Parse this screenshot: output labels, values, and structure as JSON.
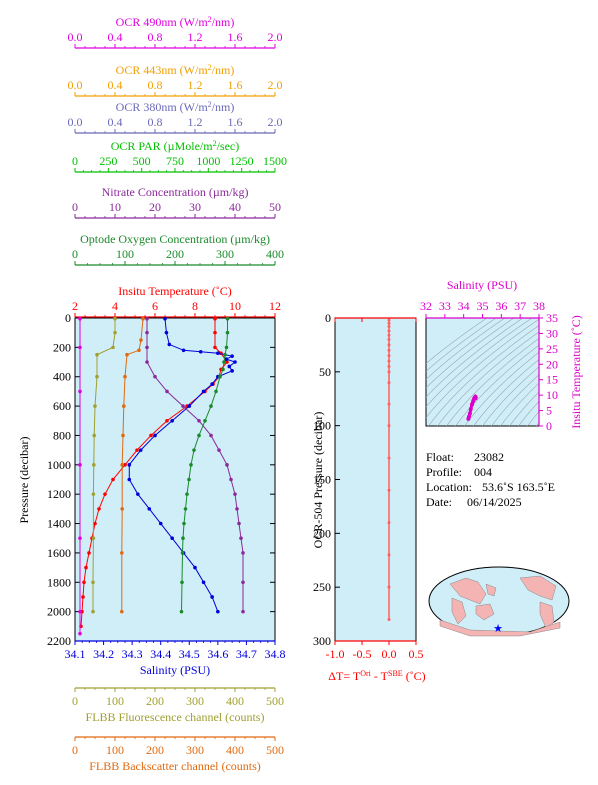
{
  "top_axes": [
    {
      "key": "ocr490",
      "label": "OCR 490nm (W/m²/nm)",
      "color": "#e000e0",
      "ticks": [
        "0.0",
        "0.4",
        "0.8",
        "1.2",
        "1.6",
        "2.0"
      ],
      "tick_values": [
        0,
        0.4,
        0.8,
        1.2,
        1.6,
        2.0
      ],
      "range": [
        0,
        2
      ]
    },
    {
      "key": "ocr443",
      "label": "OCR 443nm (W/m²/nm)",
      "color": "#f0a000",
      "ticks": [
        "0.0",
        "0.4",
        "0.8",
        "1.2",
        "1.6",
        "2.0"
      ],
      "tick_values": [
        0,
        0.4,
        0.8,
        1.2,
        1.6,
        2.0
      ],
      "range": [
        0,
        2
      ]
    },
    {
      "key": "ocr380",
      "label": "OCR 380nm (W/m²/nm)",
      "color": "#6a6ab8",
      "ticks": [
        "0.0",
        "0.4",
        "0.8",
        "1.2",
        "1.6",
        "2.0"
      ],
      "tick_values": [
        0,
        0.4,
        0.8,
        1.2,
        1.6,
        2.0
      ],
      "range": [
        0,
        2
      ]
    },
    {
      "key": "par",
      "label": "OCR PAR (µMole/m²/sec)",
      "color": "#00c000",
      "ticks": [
        "0",
        "250",
        "500",
        "750",
        "1000",
        "1250",
        "1500"
      ],
      "tick_values": [
        0,
        250,
        500,
        750,
        1000,
        1250,
        1500
      ],
      "range": [
        0,
        1500
      ]
    },
    {
      "key": "nitrate",
      "label": "Nitrate Concentration (µm/kg)",
      "color": "#8b2a9a",
      "ticks": [
        "0",
        "10",
        "20",
        "30",
        "40",
        "50"
      ],
      "tick_values": [
        0,
        10,
        20,
        30,
        40,
        50
      ],
      "range": [
        0,
        50
      ]
    },
    {
      "key": "oxygen",
      "label": "Optode Oxygen Concentration (µm/kg)",
      "color": "#1a8a2a",
      "ticks": [
        "0",
        "100",
        "200",
        "300",
        "400"
      ],
      "tick_values": [
        0,
        100,
        200,
        300,
        400
      ],
      "range": [
        0,
        400
      ]
    },
    {
      "key": "temp",
      "label": "Insitu Temperature (˚C)",
      "color": "#ff0000",
      "ticks": [
        "2",
        "4",
        "6",
        "8",
        "10",
        "12"
      ],
      "tick_values": [
        2,
        4,
        6,
        8,
        10,
        12
      ],
      "range": [
        2,
        12
      ]
    }
  ],
  "bottom_axes": [
    {
      "key": "salinity",
      "label": "Salinity (PSU)",
      "color": "#0000dd",
      "ticks": [
        "34.1",
        "34.2",
        "34.3",
        "34.4",
        "34.5",
        "34.6",
        "34.7",
        "34.8"
      ],
      "tick_values": [
        34.1,
        34.2,
        34.3,
        34.4,
        34.5,
        34.6,
        34.7,
        34.8
      ],
      "range": [
        34.1,
        34.8
      ]
    },
    {
      "key": "fluor",
      "label": "FLBB Fluorescence channel (counts)",
      "color": "#a0a030",
      "ticks": [
        "0",
        "100",
        "200",
        "300",
        "400",
        "500"
      ],
      "tick_values": [
        0,
        100,
        200,
        300,
        400,
        500
      ],
      "range": [
        0,
        500
      ]
    },
    {
      "key": "backscatter",
      "label": "FLBB Backscatter channel (counts)",
      "color": "#e06a10",
      "ticks": [
        "0",
        "100",
        "200",
        "300",
        "400",
        "500"
      ],
      "tick_values": [
        0,
        100,
        200,
        300,
        400,
        500
      ],
      "range": [
        0,
        500
      ]
    }
  ],
  "main_y": {
    "label": "Pressure (decibar)",
    "ticks": [
      "0",
      "200",
      "400",
      "600",
      "800",
      "1000",
      "1200",
      "1400",
      "1600",
      "1800",
      "2000",
      "2200"
    ],
    "tick_values": [
      0,
      200,
      400,
      600,
      800,
      1000,
      1200,
      1400,
      1600,
      1800,
      2000,
      2200
    ],
    "range": [
      0,
      2200
    ]
  },
  "ocr_panel": {
    "ylabel": "OCR-504 Pressure (decibar)",
    "yticks": [
      "0",
      "50",
      "100",
      "150",
      "200",
      "250",
      "300"
    ],
    "ytick_values": [
      0,
      50,
      100,
      150,
      200,
      250,
      300
    ],
    "yrange": [
      0,
      300
    ],
    "xticks": [
      "-1.0",
      "-0.5",
      "0.0",
      "0.5"
    ],
    "xtick_values": [
      -1.0,
      -0.5,
      0.0,
      0.5
    ],
    "xrange": [
      -1.0,
      0.5
    ],
    "xlabel": "ΔT= T^Ori - T^SBE (˚C)"
  },
  "ts_panel": {
    "xlabel": "Salinity (PSU)",
    "xticks": [
      "32",
      "33",
      "34",
      "35",
      "36",
      "37",
      "38"
    ],
    "xtick_values": [
      32,
      33,
      34,
      35,
      36,
      37,
      38
    ],
    "xrange": [
      32,
      38
    ],
    "ylabel": "Insitu Temperature (˚C)",
    "yticks": [
      "0",
      "5",
      "10",
      "15",
      "20",
      "25",
      "30",
      "35"
    ],
    "ytick_values": [
      0,
      5,
      10,
      15,
      20,
      25,
      30,
      35
    ],
    "yrange": [
      0,
      35
    ],
    "color": "#dd00cc"
  },
  "info": {
    "float_label": "Float:",
    "float": "23082",
    "profile_label": "Profile:",
    "profile": "004",
    "location_label": "Location:",
    "location": "53.6˚S  163.5˚E",
    "date_label": "Date:",
    "date": "06/14/2025"
  },
  "colors": {
    "panel_bg": "#cfeef8",
    "map_ocean": "#cfeef8",
    "map_land": "#f4b4b4",
    "dt_series": "#ff6060",
    "marker": "#0000ff"
  },
  "chart_data": {
    "type": "line",
    "y_variable": "pressure",
    "pressure": [
      5,
      100,
      200,
      250,
      300,
      350,
      400,
      450,
      500,
      600,
      700,
      800,
      900,
      1000,
      1100,
      1200,
      1300,
      1400,
      1500,
      1600,
      1700,
      1800,
      1900,
      2000,
      2100
    ],
    "series": [
      {
        "name": "Insitu Temperature (˚C)",
        "axis": "temp",
        "color": "#ff0000",
        "points": [
          [
            9.0,
            5
          ],
          [
            9.0,
            100
          ],
          [
            9.0,
            200
          ],
          [
            9.3,
            240
          ],
          [
            9.6,
            300
          ],
          [
            9.3,
            350
          ],
          [
            9.2,
            400
          ],
          [
            8.9,
            450
          ],
          [
            8.5,
            500
          ],
          [
            7.6,
            600
          ],
          [
            6.6,
            700
          ],
          [
            5.8,
            800
          ],
          [
            5.1,
            900
          ],
          [
            4.5,
            1000
          ],
          [
            3.9,
            1100
          ],
          [
            3.5,
            1200
          ],
          [
            3.2,
            1300
          ],
          [
            3.0,
            1400
          ],
          [
            2.85,
            1500
          ],
          [
            2.7,
            1600
          ],
          [
            2.55,
            1700
          ],
          [
            2.45,
            1800
          ],
          [
            2.4,
            1900
          ],
          [
            2.35,
            2000
          ],
          [
            2.3,
            2100
          ]
        ]
      },
      {
        "name": "Salinity (PSU)",
        "axis": "salinity",
        "color": "#0000dd",
        "points": [
          [
            34.415,
            5
          ],
          [
            34.42,
            100
          ],
          [
            34.43,
            180
          ],
          [
            34.48,
            220
          ],
          [
            34.54,
            230
          ],
          [
            34.6,
            240
          ],
          [
            34.65,
            260
          ],
          [
            34.63,
            280
          ],
          [
            34.66,
            300
          ],
          [
            34.64,
            330
          ],
          [
            34.65,
            360
          ],
          [
            34.6,
            400
          ],
          [
            34.58,
            450
          ],
          [
            34.55,
            500
          ],
          [
            34.5,
            600
          ],
          [
            34.44,
            700
          ],
          [
            34.38,
            800
          ],
          [
            34.33,
            900
          ],
          [
            34.29,
            1000
          ],
          [
            34.29,
            1100
          ],
          [
            34.32,
            1200
          ],
          [
            34.36,
            1300
          ],
          [
            34.4,
            1400
          ],
          [
            34.44,
            1500
          ],
          [
            34.48,
            1600
          ],
          [
            34.52,
            1700
          ],
          [
            34.55,
            1800
          ],
          [
            34.58,
            1900
          ],
          [
            34.6,
            2000
          ]
        ]
      },
      {
        "name": "Nitrate Concentration (µm/kg)",
        "axis": "nitrate",
        "color": "#8b2a9a",
        "points": [
          [
            18,
            5
          ],
          [
            18,
            100
          ],
          [
            18,
            200
          ],
          [
            18,
            300
          ],
          [
            20,
            400
          ],
          [
            23,
            500
          ],
          [
            27,
            600
          ],
          [
            31,
            700
          ],
          [
            34,
            800
          ],
          [
            36,
            900
          ],
          [
            38,
            1000
          ],
          [
            39,
            1100
          ],
          [
            40,
            1200
          ],
          [
            40.5,
            1300
          ],
          [
            41,
            1400
          ],
          [
            41.5,
            1500
          ],
          [
            42,
            1600
          ],
          [
            42,
            1800
          ],
          [
            42,
            2000
          ]
        ]
      },
      {
        "name": "Optode Oxygen Concentration (µm/kg)",
        "axis": "oxygen",
        "color": "#1a8a2a",
        "points": [
          [
            305,
            5
          ],
          [
            305,
            100
          ],
          [
            303,
            200
          ],
          [
            300,
            250
          ],
          [
            298,
            300
          ],
          [
            296,
            350
          ],
          [
            290,
            400
          ],
          [
            282,
            500
          ],
          [
            272,
            600
          ],
          [
            260,
            700
          ],
          [
            248,
            800
          ],
          [
            238,
            900
          ],
          [
            232,
            1000
          ],
          [
            228,
            1100
          ],
          [
            224,
            1200
          ],
          [
            221,
            1300
          ],
          [
            218,
            1400
          ],
          [
            216,
            1500
          ],
          [
            215,
            1600
          ],
          [
            214,
            1800
          ],
          [
            213,
            2000
          ]
        ]
      },
      {
        "name": "FLBB Fluorescence channel (counts)",
        "axis": "fluor",
        "color": "#a0a030",
        "points": [
          [
            100,
            5
          ],
          [
            100,
            100
          ],
          [
            95,
            200
          ],
          [
            55,
            250
          ],
          [
            55,
            400
          ],
          [
            50,
            600
          ],
          [
            48,
            800
          ],
          [
            47,
            1000
          ],
          [
            46,
            1200
          ],
          [
            46,
            1500
          ],
          [
            45,
            1800
          ],
          [
            45,
            2000
          ]
        ]
      },
      {
        "name": "FLBB Backscatter channel (counts)",
        "axis": "backscatter",
        "color": "#e06a10",
        "points": [
          [
            170,
            5
          ],
          [
            165,
            150
          ],
          [
            160,
            220
          ],
          [
            130,
            250
          ],
          [
            125,
            400
          ],
          [
            122,
            600
          ],
          [
            120,
            800
          ],
          [
            118,
            1000
          ],
          [
            118,
            1300
          ],
          [
            117,
            1600
          ],
          [
            117,
            2000
          ]
        ]
      },
      {
        "name": "OCR 490nm (W/m²/nm)",
        "axis": "ocr490",
        "color": "#e000e0",
        "points": [
          [
            0.05,
            5
          ],
          [
            0.05,
            200
          ],
          [
            0.05,
            500
          ],
          [
            0.05,
            1000
          ],
          [
            0.05,
            1500
          ],
          [
            0.05,
            2000
          ],
          [
            0.05,
            2150
          ]
        ]
      }
    ],
    "dt_series": {
      "x": [
        0,
        0,
        0,
        0,
        0,
        0,
        0,
        0,
        0,
        0,
        0,
        0,
        0,
        0,
        0,
        0,
        0,
        0,
        0,
        0,
        0
      ],
      "y": [
        2,
        5,
        8,
        12,
        16,
        20,
        25,
        30,
        35,
        40,
        45,
        50,
        60,
        80,
        100,
        130,
        160,
        190,
        220,
        250,
        280
      ]
    },
    "ts_points": [
      [
        34.25,
        2.3
      ],
      [
        34.28,
        3.0
      ],
      [
        34.33,
        4.0
      ],
      [
        34.38,
        5.5
      ],
      [
        34.44,
        7.0
      ],
      [
        34.5,
        8.0
      ],
      [
        34.56,
        9.0
      ],
      [
        34.62,
        9.5
      ],
      [
        34.64,
        9.3
      ],
      [
        34.63,
        9.0
      ],
      [
        34.52,
        8.3
      ],
      [
        34.45,
        7.0
      ]
    ],
    "map_marker": {
      "lat": -53.6,
      "lon": 163.5
    }
  }
}
